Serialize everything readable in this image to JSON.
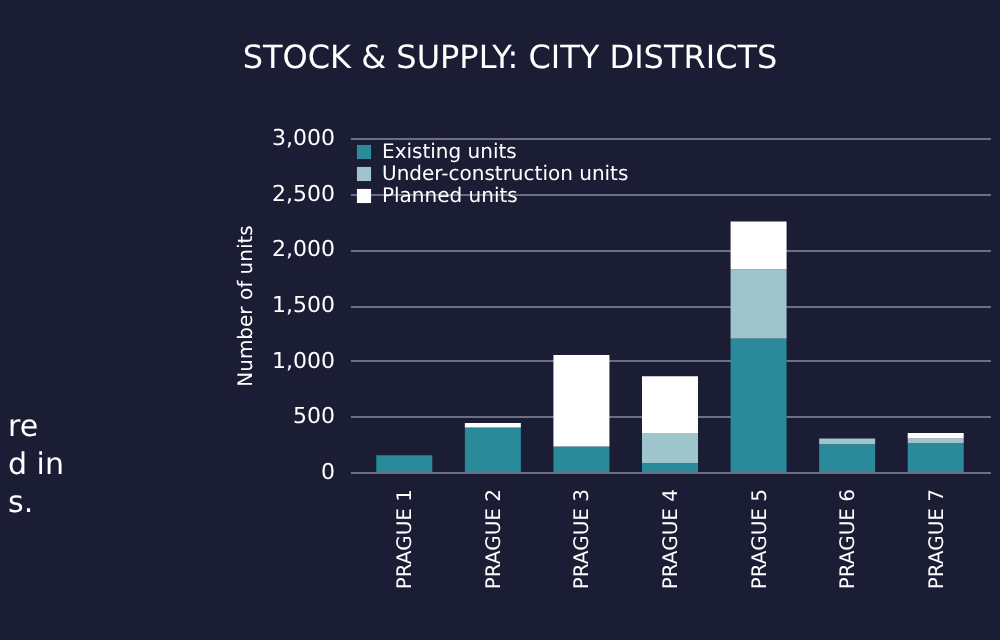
{
  "chart_data": {
    "type": "bar",
    "title": "STOCK & SUPPLY: CITY DISTRICTS",
    "ylabel": "Number of units",
    "categories": [
      "PRAGUE 1",
      "PRAGUE 2",
      "PRAGUE 3",
      "PRAGUE 4",
      "PRAGUE 5",
      "PRAGUE 6",
      "PRAGUE 7"
    ],
    "stacked": true,
    "series": [
      {
        "name": "Existing units",
        "color": "#2a8a9a",
        "values": [
          150,
          400,
          230,
          80,
          1200,
          250,
          260
        ]
      },
      {
        "name": "Under-construction units",
        "color": "#9ec5cc",
        "values": [
          0,
          0,
          0,
          270,
          620,
          50,
          40
        ]
      },
      {
        "name": "Planned units",
        "color": "#ffffff",
        "values": [
          0,
          40,
          820,
          510,
          430,
          0,
          50
        ]
      }
    ],
    "ylim": [
      0,
      3000
    ],
    "yticks": [
      {
        "value": 0,
        "label": "0"
      },
      {
        "value": 500,
        "label": "500"
      },
      {
        "value": 1000,
        "label": "1,000"
      },
      {
        "value": 1500,
        "label": "1,500"
      },
      {
        "value": 2000,
        "label": "2,000"
      },
      {
        "value": 2500,
        "label": "2,500"
      },
      {
        "value": 3000,
        "label": "3,000"
      }
    ],
    "grid": "y",
    "legend": "top left",
    "annotations": [
      "re",
      "d in",
      "s."
    ]
  }
}
